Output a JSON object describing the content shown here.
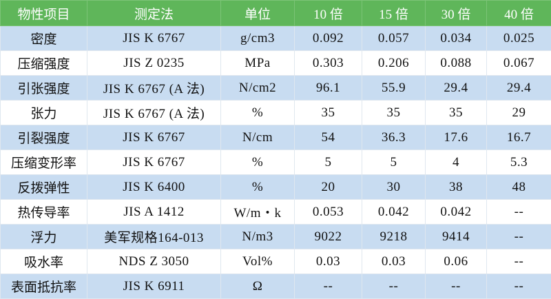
{
  "table": {
    "header": [
      "物性项目",
      "测定法",
      "单位",
      "10 倍",
      "15 倍",
      "30 倍",
      "40 倍"
    ],
    "rows": [
      [
        "密度",
        "JIS K 6767",
        "g/cm3",
        "0.092",
        "0.057",
        "0.034",
        "0.025"
      ],
      [
        "压缩强度",
        "JIS Z 0235",
        "MPa",
        "0.303",
        "0.206",
        "0.088",
        "0.067"
      ],
      [
        "引张强度",
        "JIS K 6767 (A 法)",
        "N/cm2",
        "96.1",
        "55.9",
        "29.4",
        "29.4"
      ],
      [
        "张力",
        "JIS K 6767 (A 法)",
        "%",
        "35",
        "35",
        "35",
        "29"
      ],
      [
        "引裂强度",
        "JIS K 6767",
        "N/cm",
        "54",
        "36.3",
        "17.6",
        "16.7"
      ],
      [
        "压缩变形率",
        "JIS K 6767",
        "%",
        "5",
        "5",
        "4",
        "5.3"
      ],
      [
        "反拨弹性",
        "JIS K 6400",
        "%",
        "20",
        "30",
        "38",
        "48"
      ],
      [
        "热传导率",
        "JIS A 1412",
        "W/m・k",
        "0.053",
        "0.042",
        "0.042",
        "--"
      ],
      [
        "浮力",
        "美军规格164-013",
        "N/m3",
        "9022",
        "9218",
        "9414",
        "--"
      ],
      [
        "吸水率",
        "NDS Z 3050",
        "Vol%",
        "0.03",
        "0.03",
        "0.06",
        "--"
      ],
      [
        "表面抵抗率",
        "JIS K 6911",
        "Ω",
        "--",
        "--",
        "--",
        "--"
      ]
    ]
  }
}
